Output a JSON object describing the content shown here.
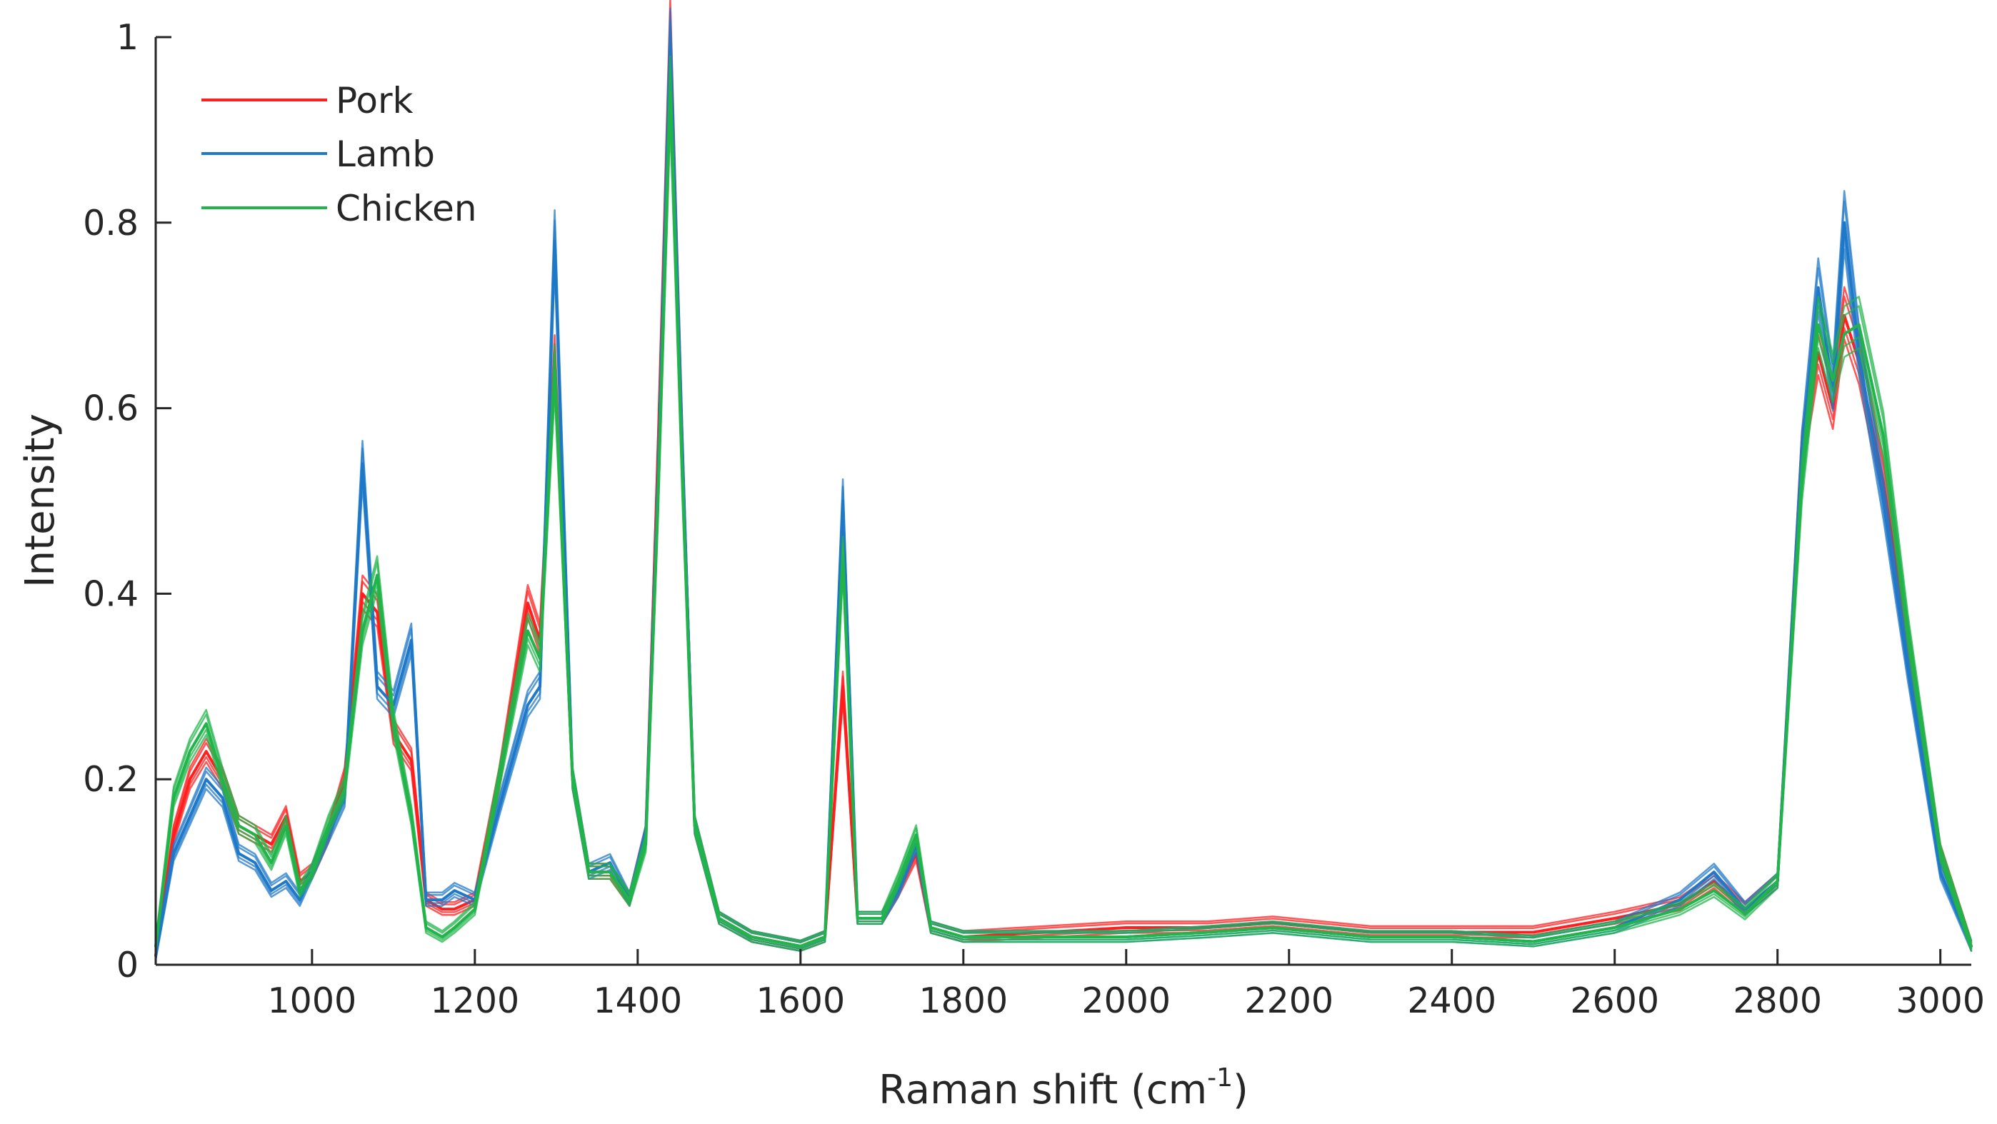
{
  "chart_data": {
    "type": "line",
    "title": "",
    "xlabel": "Raman shift (cm",
    "xlabel_sup": "-1",
    "xlabel_end": ")",
    "ylabel": "Intensity",
    "xlim": [
      808,
      3038
    ],
    "ylim": [
      0,
      1
    ],
    "xticks": [
      1000,
      1200,
      1400,
      1600,
      1800,
      2000,
      2200,
      2400,
      2600,
      2800,
      3000
    ],
    "xtick_labels": [
      "1000",
      "1200",
      "1400",
      "1600",
      "1800",
      "2000",
      "2200",
      "2400",
      "2600",
      "2800",
      "3000"
    ],
    "yticks": [
      0,
      0.2,
      0.4,
      0.6,
      0.8,
      1
    ],
    "ytick_labels": [
      "0",
      "0.2",
      "0.4",
      "0.6",
      "0.8",
      "1"
    ],
    "legend_position": "top-left",
    "series": [
      {
        "name": "Pork",
        "color": "#ff1f1f",
        "x": [
          808,
          830,
          850,
          870,
          890,
          910,
          930,
          950,
          968,
          985,
          1000,
          1020,
          1040,
          1062,
          1080,
          1100,
          1122,
          1140,
          1160,
          1175,
          1200,
          1230,
          1265,
          1280,
          1298,
          1320,
          1340,
          1366,
          1390,
          1410,
          1425,
          1440,
          1455,
          1470,
          1500,
          1540,
          1600,
          1630,
          1652,
          1670,
          1700,
          1720,
          1742,
          1760,
          1800,
          1900,
          2000,
          2100,
          2180,
          2300,
          2400,
          2500,
          2600,
          2680,
          2722,
          2760,
          2800,
          2830,
          2850,
          2868,
          2882,
          2900,
          2930,
          2960,
          3000,
          3038
        ],
        "y": [
          0.01,
          0.14,
          0.2,
          0.23,
          0.2,
          0.15,
          0.14,
          0.13,
          0.16,
          0.09,
          0.1,
          0.14,
          0.2,
          0.4,
          0.38,
          0.25,
          0.22,
          0.07,
          0.06,
          0.06,
          0.07,
          0.2,
          0.39,
          0.35,
          0.65,
          0.2,
          0.1,
          0.1,
          0.07,
          0.14,
          0.55,
          1.0,
          0.55,
          0.15,
          0.05,
          0.03,
          0.02,
          0.03,
          0.3,
          0.05,
          0.05,
          0.08,
          0.12,
          0.04,
          0.03,
          0.035,
          0.04,
          0.04,
          0.045,
          0.035,
          0.035,
          0.035,
          0.05,
          0.065,
          0.09,
          0.06,
          0.09,
          0.55,
          0.66,
          0.6,
          0.7,
          0.65,
          0.52,
          0.35,
          0.12,
          0.02
        ]
      },
      {
        "name": "Lamb",
        "color": "#1f78c8",
        "x": [
          808,
          830,
          850,
          870,
          890,
          910,
          930,
          950,
          968,
          985,
          1000,
          1020,
          1040,
          1062,
          1080,
          1100,
          1122,
          1140,
          1160,
          1175,
          1200,
          1230,
          1265,
          1280,
          1298,
          1320,
          1340,
          1366,
          1390,
          1410,
          1425,
          1440,
          1455,
          1470,
          1500,
          1540,
          1600,
          1630,
          1652,
          1670,
          1700,
          1720,
          1742,
          1760,
          1800,
          1900,
          2000,
          2100,
          2180,
          2300,
          2400,
          2500,
          2600,
          2680,
          2722,
          2760,
          2800,
          2830,
          2850,
          2868,
          2882,
          2900,
          2930,
          2960,
          3000,
          3038
        ],
        "y": [
          0.01,
          0.12,
          0.16,
          0.2,
          0.18,
          0.12,
          0.11,
          0.08,
          0.09,
          0.07,
          0.1,
          0.14,
          0.18,
          0.54,
          0.3,
          0.28,
          0.35,
          0.07,
          0.07,
          0.08,
          0.07,
          0.17,
          0.28,
          0.3,
          0.78,
          0.2,
          0.1,
          0.11,
          0.07,
          0.14,
          0.52,
          0.99,
          0.55,
          0.15,
          0.05,
          0.03,
          0.02,
          0.03,
          0.5,
          0.05,
          0.05,
          0.08,
          0.13,
          0.04,
          0.03,
          0.03,
          0.03,
          0.035,
          0.04,
          0.03,
          0.03,
          0.025,
          0.04,
          0.07,
          0.1,
          0.06,
          0.09,
          0.55,
          0.73,
          0.62,
          0.8,
          0.66,
          0.5,
          0.32,
          0.1,
          0.02
        ]
      },
      {
        "name": "Chicken",
        "color": "#20b44a",
        "x": [
          808,
          830,
          850,
          870,
          890,
          910,
          930,
          950,
          968,
          985,
          1000,
          1020,
          1040,
          1062,
          1080,
          1100,
          1122,
          1140,
          1160,
          1175,
          1200,
          1230,
          1265,
          1280,
          1298,
          1320,
          1340,
          1366,
          1390,
          1410,
          1425,
          1440,
          1455,
          1470,
          1500,
          1540,
          1600,
          1630,
          1652,
          1670,
          1700,
          1720,
          1742,
          1760,
          1800,
          1900,
          2000,
          2100,
          2180,
          2300,
          2400,
          2500,
          2600,
          2680,
          2722,
          2760,
          2800,
          2830,
          2850,
          2868,
          2882,
          2900,
          2930,
          2960,
          3000,
          3038
        ],
        "y": [
          0.02,
          0.18,
          0.23,
          0.26,
          0.2,
          0.15,
          0.14,
          0.11,
          0.15,
          0.08,
          0.1,
          0.15,
          0.19,
          0.36,
          0.42,
          0.26,
          0.16,
          0.04,
          0.03,
          0.04,
          0.06,
          0.2,
          0.36,
          0.33,
          0.64,
          0.2,
          0.1,
          0.1,
          0.07,
          0.13,
          0.5,
          0.94,
          0.52,
          0.15,
          0.05,
          0.03,
          0.02,
          0.03,
          0.44,
          0.05,
          0.05,
          0.09,
          0.14,
          0.04,
          0.03,
          0.03,
          0.03,
          0.035,
          0.04,
          0.03,
          0.03,
          0.025,
          0.04,
          0.06,
          0.08,
          0.055,
          0.09,
          0.52,
          0.69,
          0.63,
          0.68,
          0.69,
          0.57,
          0.36,
          0.12,
          0.02
        ]
      }
    ]
  }
}
